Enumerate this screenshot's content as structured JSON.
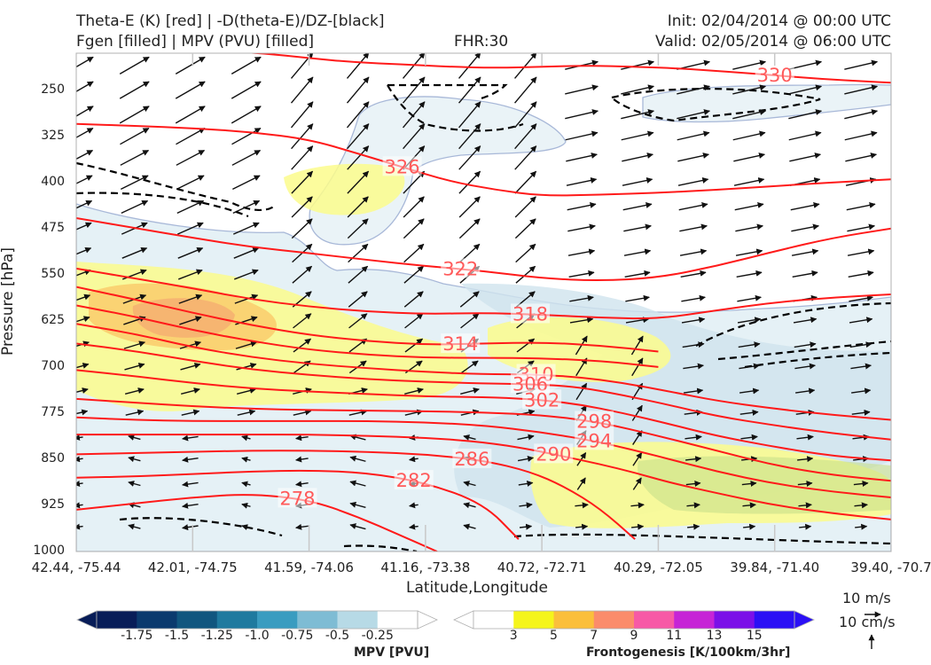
{
  "header": {
    "title_left_1": "Theta-E (K) [red] | -D(theta-E)/DZ-[black]",
    "title_left_2": "Fgen [filled] | MPV (PVU) [filled]",
    "fhr": "FHR:30",
    "init": "Init: 02/04/2014 @ 00:00 UTC",
    "valid": "Valid: 02/05/2014 @ 06:00 UTC"
  },
  "chart_data": {
    "type": "cross-section",
    "xlabel": "Latitude,Longitude",
    "ylabel": "Pressure [hPa]",
    "x_ticks": [
      "42.44, -75.44",
      "42.01, -74.75",
      "41.59, -74.06",
      "41.16, -73.38",
      "40.72, -72.71",
      "40.29, -72.05",
      "39.84, -71.40",
      "39.40, -70.7"
    ],
    "y_ticks": [
      250,
      325,
      400,
      475,
      550,
      625,
      700,
      775,
      850,
      925,
      1000
    ],
    "ylim": [
      1000,
      190
    ],
    "theta_e_contours": [
      {
        "label": "330",
        "x": [
          0,
          0.4,
          0.8,
          1.2,
          1.6,
          2.0,
          2.4,
          2.8,
          3.2,
          3.6,
          4.0,
          4.4,
          4.8,
          5.2,
          5.6,
          6.0,
          6.4,
          6.8,
          7.0
        ],
        "p": [
          185,
          183,
          184,
          186,
          190,
          198,
          205,
          208,
          212,
          214,
          212,
          210,
          212,
          215,
          220,
          226,
          232,
          236,
          238
        ]
      },
      {
        "label": "326",
        "x": [
          0,
          0.5,
          1.0,
          1.5,
          2.0,
          2.4,
          2.8,
          3.2,
          3.6,
          4.0,
          4.5,
          5.0,
          5.5,
          6.0,
          6.5,
          7.0
        ],
        "p": [
          305,
          308,
          312,
          318,
          330,
          352,
          375,
          398,
          412,
          422,
          420,
          417,
          412,
          406,
          400,
          395
        ]
      },
      {
        "label": "322",
        "x": [
          0,
          0.5,
          1.0,
          1.5,
          2.0,
          2.5,
          3.0,
          3.5,
          4.0,
          4.5,
          5.0,
          5.5,
          6.0,
          6.5,
          7.0
        ],
        "p": [
          458,
          474,
          490,
          505,
          515,
          526,
          536,
          544,
          556,
          560,
          555,
          536,
          512,
          490,
          475
        ]
      },
      {
        "label": "318",
        "x": [
          0,
          0.5,
          1.0,
          1.5,
          2.0,
          2.5,
          3.0,
          3.5,
          4.0,
          4.5,
          5.0,
          5.5,
          6.0,
          6.5,
          7.0
        ],
        "p": [
          540,
          556,
          572,
          590,
          602,
          610,
          614,
          612,
          615,
          620,
          622,
          608,
          595,
          587,
          582
        ]
      },
      {
        "label": "314",
        "x": [
          0,
          0.5,
          1.0,
          1.5,
          2.0,
          2.5,
          3.0,
          3.5,
          4.0,
          4.5,
          5.0
        ],
        "p": [
          570,
          590,
          612,
          632,
          648,
          658,
          664,
          662,
          660,
          665,
          675
        ]
      },
      {
        "label": "",
        "x": [
          0,
          0.5,
          1.0,
          1.5,
          2.0,
          2.5,
          3.0,
          3.5,
          4.0,
          4.5,
          5.0
        ],
        "p": [
          600,
          618,
          640,
          658,
          672,
          680,
          685,
          685,
          686,
          690,
          700
        ]
      },
      {
        "label": "310",
        "x": [
          0,
          0.5,
          1.0,
          1.5,
          2.0,
          2.5,
          3.0,
          3.5,
          3.9,
          4.3,
          4.7,
          5.1,
          5.5,
          6.0,
          6.5,
          7.0
        ],
        "p": [
          630,
          646,
          668,
          684,
          695,
          702,
          708,
          712,
          712,
          716,
          726,
          740,
          755,
          768,
          778,
          786
        ]
      },
      {
        "label": "306",
        "x": [
          0,
          0.5,
          1.0,
          1.5,
          2.0,
          2.5,
          3.0,
          3.5,
          3.9,
          4.3,
          4.7,
          5.1,
          5.5,
          6.0,
          6.5,
          7.0
        ],
        "p": [
          662,
          674,
          690,
          704,
          713,
          720,
          724,
          727,
          728,
          732,
          746,
          762,
          780,
          795,
          808,
          818
        ]
      },
      {
        "label": "302",
        "x": [
          0,
          0.5,
          1.0,
          1.5,
          2.0,
          2.5,
          3.0,
          3.5,
          3.9,
          4.3,
          4.7,
          5.1,
          5.5,
          6.0,
          6.5,
          7.0
        ],
        "p": [
          705,
          715,
          726,
          735,
          740,
          744,
          748,
          749,
          752,
          760,
          775,
          793,
          812,
          830,
          845,
          852
        ]
      },
      {
        "label": "298",
        "x": [
          0,
          0.5,
          1.0,
          1.5,
          2.0,
          2.5,
          3.0,
          3.5,
          4.0,
          4.5,
          5.0,
          5.5,
          6.0,
          6.5,
          7.0
        ],
        "p": [
          752,
          758,
          764,
          768,
          770,
          771,
          772,
          774,
          778,
          790,
          812,
          836,
          860,
          876,
          885
        ]
      },
      {
        "label": "294",
        "x": [
          0,
          0.5,
          1.0,
          1.5,
          2.0,
          2.5,
          3.0,
          3.5,
          4.0,
          4.5,
          5.0,
          5.5,
          6.0,
          6.5,
          7.0
        ],
        "p": [
          782,
          786,
          788,
          788,
          788,
          788,
          790,
          795,
          806,
          822,
          845,
          870,
          890,
          903,
          912
        ]
      },
      {
        "label": "290",
        "x": [
          0,
          0.5,
          1.0,
          1.5,
          2.0,
          2.5,
          3.0,
          3.5,
          3.9,
          4.2,
          4.5,
          4.8,
          5.1,
          5.5,
          6.0,
          6.5,
          7.0
        ],
        "p": [
          810,
          810,
          810,
          810,
          810,
          812,
          815,
          822,
          834,
          846,
          858,
          872,
          888,
          905,
          925,
          938,
          948
        ]
      },
      {
        "label": "286",
        "x": [
          0,
          0.5,
          1.0,
          1.5,
          2.0,
          2.5,
          3.0,
          3.5,
          3.9,
          4.2,
          4.5,
          4.8
        ],
        "p": [
          842,
          840,
          838,
          836,
          836,
          838,
          842,
          852,
          870,
          895,
          930,
          980
        ]
      },
      {
        "label": "282",
        "x": [
          0,
          0.5,
          1.0,
          1.5,
          2.0,
          2.5,
          3.0,
          3.5,
          3.8
        ],
        "p": [
          880,
          878,
          874,
          870,
          868,
          872,
          888,
          922,
          980
        ]
      },
      {
        "label": "278",
        "x": [
          0,
          0.5,
          1.0,
          1.5,
          2.0,
          2.4,
          2.8,
          3.1
        ],
        "p": [
          932,
          922,
          912,
          906,
          916,
          942,
          975,
          1000
        ]
      }
    ],
    "wind_reference": [
      "10 m/s",
      "10 cm/s"
    ]
  },
  "colorbars": {
    "mpv": {
      "title": "MPV [PVU]",
      "colors": [
        "#081d58",
        "#0b3a6e",
        "#11567f",
        "#1f7a9f",
        "#3a9cc0",
        "#7ebcd4",
        "#b7dae6",
        "#ffffff"
      ],
      "labels": [
        "-1.75",
        "-1.5",
        "-1.25",
        "-1.0",
        "-0.75",
        "-0.5",
        "-0.25"
      ]
    },
    "fgen": {
      "title": "Frontogenesis [K/100km/3hr]",
      "colors": [
        "#ffffff",
        "#f5f51b",
        "#fbbf3b",
        "#fb8c6b",
        "#f759a6",
        "#c624d6",
        "#7b10e8",
        "#2b10f5"
      ],
      "labels": [
        "3",
        "5",
        "7",
        "9",
        "11",
        "13",
        "15"
      ]
    }
  },
  "colors": {
    "theta_e": "#ff1a1a",
    "theta_e_label": "#ff5a5a",
    "stability": "#000000",
    "mpv_shade": "#dcecf3",
    "fgen_shade": "#fbfb8c"
  }
}
